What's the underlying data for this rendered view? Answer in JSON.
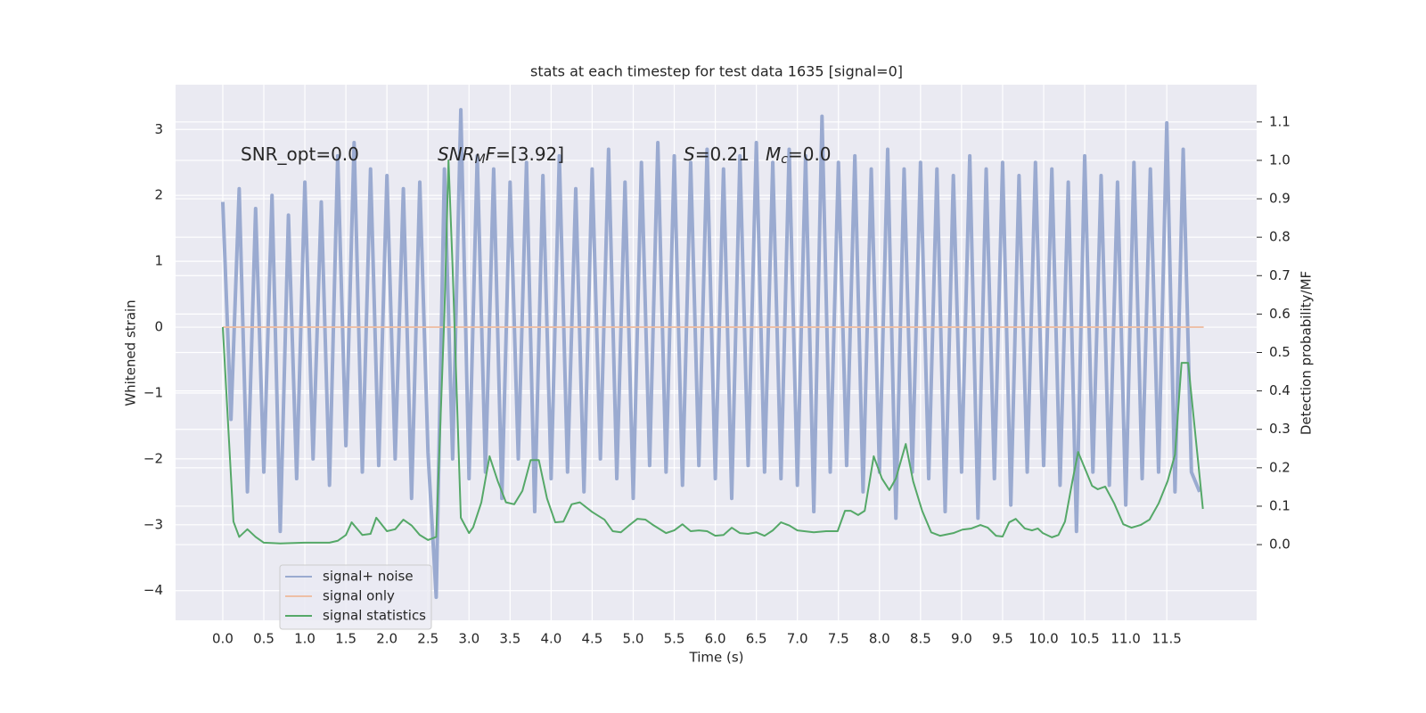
{
  "chart_data": {
    "type": "line",
    "title": "stats at each timestep for test data 1635 [signal=0]",
    "xlabel": "Time (s)",
    "ylabel": "Whitened strain",
    "y2label": "Detection probability/MF",
    "annotations": [
      "SNR_opt=0.0",
      [
        "SNR",
        "M",
        "F",
        "=[3.92]"
      ],
      [
        "S",
        "=0.21"
      ],
      [
        "M",
        "c",
        "=0.0"
      ]
    ],
    "grid": true,
    "xlim": [
      -0.575,
      12.595
    ],
    "ylim": [
      -4.45,
      3.68
    ],
    "y2lim": [
      -0.197,
      1.197
    ],
    "xticks": [
      {
        "value": 0,
        "label": "0.0"
      },
      0.5,
      {
        "value": 1,
        "label": "1.0"
      },
      1.5,
      {
        "value": 2,
        "label": "2.0"
      },
      2.5,
      {
        "value": 3,
        "label": "3.0"
      },
      3.5,
      {
        "value": 4,
        "label": "4.0"
      },
      4.5,
      {
        "value": 5,
        "label": "5.0"
      },
      5.5,
      {
        "value": 6,
        "label": "6.0"
      },
      6.5,
      {
        "value": 7,
        "label": "7.0"
      },
      7.5,
      {
        "value": 8,
        "label": "8.0"
      },
      8.5,
      {
        "value": 9,
        "label": "9.0"
      },
      9.5,
      {
        "value": 10,
        "label": "10.0"
      },
      10.5,
      {
        "value": 11,
        "label": "11.0"
      },
      11.5
    ],
    "yticks": [
      {
        "value": -4,
        "label": "−4"
      },
      {
        "value": -3,
        "label": "−3"
      },
      {
        "value": -2,
        "label": "−2"
      },
      {
        "value": -1,
        "label": "−1"
      },
      0,
      1,
      2,
      3
    ],
    "y2ticks": [
      {
        "value": 0,
        "label": "0.0"
      },
      0.1,
      0.2,
      0.3,
      0.4,
      0.5,
      0.6,
      0.7,
      0.8,
      0.9,
      {
        "value": 1,
        "label": "1.0"
      },
      1.1
    ],
    "series": [
      {
        "name": "signal+ noise",
        "color": "#9aaad0",
        "x": [
          0.0,
          0.1,
          0.2,
          0.3,
          0.4,
          0.5,
          0.6,
          0.7,
          0.8,
          0.9,
          1.0,
          1.1,
          1.2,
          1.3,
          1.4,
          1.5,
          1.6,
          1.7,
          1.8,
          1.9,
          2.0,
          2.1,
          2.2,
          2.3,
          2.4,
          2.5,
          2.6,
          2.7,
          2.8,
          2.9,
          3.0,
          3.1,
          3.2,
          3.3,
          3.4,
          3.5,
          3.6,
          3.7,
          3.8,
          3.9,
          4.0,
          4.1,
          4.2,
          4.3,
          4.4,
          4.5,
          4.6,
          4.7,
          4.8,
          4.9,
          5.0,
          5.1,
          5.2,
          5.3,
          5.4,
          5.5,
          5.6,
          5.7,
          5.8,
          5.9,
          6.0,
          6.1,
          6.2,
          6.3,
          6.4,
          6.5,
          6.6,
          6.7,
          6.8,
          6.9,
          7.0,
          7.1,
          7.2,
          7.3,
          7.4,
          7.5,
          7.6,
          7.7,
          7.8,
          7.9,
          8.0,
          8.1,
          8.2,
          8.3,
          8.4,
          8.5,
          8.6,
          8.7,
          8.8,
          8.9,
          9.0,
          9.1,
          9.2,
          9.3,
          9.4,
          9.5,
          9.6,
          9.7,
          9.8,
          9.9,
          10.0,
          10.1,
          10.2,
          10.3,
          10.4,
          10.5,
          10.6,
          10.7,
          10.8,
          10.9,
          11.0,
          11.1,
          11.2,
          11.3,
          11.4,
          11.5,
          11.6,
          11.7,
          11.8,
          11.9
        ],
        "values": [
          1.9,
          -1.4,
          2.1,
          -2.5,
          1.8,
          -2.2,
          2.0,
          -3.1,
          1.7,
          -2.3,
          2.2,
          -2.0,
          1.9,
          -2.4,
          2.6,
          -1.8,
          2.8,
          -2.2,
          2.4,
          -2.1,
          2.3,
          -2.0,
          2.1,
          -2.6,
          2.2,
          -1.9,
          -4.1,
          2.4,
          -2.0,
          3.3,
          -2.3,
          2.6,
          -2.2,
          2.4,
          -2.6,
          2.2,
          -2.0,
          2.5,
          -2.8,
          2.3,
          -2.3,
          2.6,
          -2.2,
          2.1,
          -2.5,
          2.4,
          -2.0,
          2.7,
          -2.3,
          2.2,
          -2.6,
          2.5,
          -2.1,
          2.8,
          -2.2,
          2.6,
          -2.4,
          2.5,
          -2.1,
          2.7,
          -2.3,
          2.4,
          -2.6,
          2.6,
          -2.1,
          2.8,
          -2.2,
          2.5,
          -2.3,
          2.7,
          -2.4,
          2.6,
          -2.8,
          3.2,
          -2.2,
          2.5,
          -2.1,
          2.6,
          -2.5,
          2.4,
          -2.2,
          2.7,
          -2.9,
          2.4,
          -2.2,
          2.5,
          -2.3,
          2.4,
          -2.8,
          2.3,
          -2.2,
          2.6,
          -2.9,
          2.4,
          -2.3,
          2.5,
          -2.7,
          2.3,
          -2.2,
          2.5,
          -2.1,
          2.4,
          -2.4,
          2.2,
          -3.1,
          2.6,
          -2.2,
          2.3,
          -2.4,
          2.2,
          -2.7,
          2.5,
          -2.3,
          2.4,
          -2.2,
          3.1,
          -2.5,
          2.7,
          -2.2,
          -2.5
        ]
      },
      {
        "name": "signal only",
        "color": "#eebfa5",
        "x": [
          0.0,
          11.95
        ],
        "values": [
          0,
          0
        ]
      },
      {
        "name": "signal statistics",
        "color": "#55a868",
        "axis": "y2",
        "x": [
          0,
          0.13,
          0.2,
          0.3,
          0.4,
          0.5,
          0.7,
          1.0,
          1.3,
          1.4,
          1.5,
          1.57,
          1.7,
          1.8,
          1.87,
          2.0,
          2.1,
          2.2,
          2.3,
          2.4,
          2.5,
          2.6,
          2.7,
          2.75,
          2.8,
          2.9,
          3.0,
          3.05,
          3.15,
          3.25,
          3.35,
          3.45,
          3.55,
          3.65,
          3.75,
          3.85,
          3.95,
          4.05,
          4.15,
          4.25,
          4.35,
          4.5,
          4.65,
          4.75,
          4.85,
          4.95,
          5.05,
          5.15,
          5.25,
          5.4,
          5.5,
          5.6,
          5.7,
          5.8,
          5.9,
          6.0,
          6.1,
          6.2,
          6.3,
          6.4,
          6.5,
          6.6,
          6.7,
          6.8,
          6.9,
          7.0,
          7.2,
          7.35,
          7.49,
          7.58,
          7.65,
          7.74,
          7.82,
          7.93,
          8.03,
          8.12,
          8.2,
          8.32,
          8.41,
          8.52,
          8.63,
          8.74,
          8.9,
          9.01,
          9.12,
          9.23,
          9.32,
          9.42,
          9.5,
          9.58,
          9.66,
          9.77,
          9.86,
          9.93,
          9.99,
          10.1,
          10.18,
          10.26,
          10.35,
          10.42,
          10.59,
          10.66,
          10.75,
          10.86,
          10.97,
          11.07,
          11.18,
          11.29,
          11.4,
          11.51,
          11.6,
          11.68,
          11.76,
          11.94
        ],
        "values": [
          0.566,
          0.06,
          0.02,
          0.04,
          0.02,
          0.005,
          0.003,
          0.005,
          0.005,
          0.01,
          0.025,
          0.058,
          0.025,
          0.028,
          0.07,
          0.035,
          0.04,
          0.065,
          0.05,
          0.025,
          0.012,
          0.02,
          0.6,
          1.0,
          0.72,
          0.07,
          0.03,
          0.045,
          0.11,
          0.23,
          0.165,
          0.11,
          0.105,
          0.14,
          0.22,
          0.22,
          0.12,
          0.058,
          0.06,
          0.105,
          0.11,
          0.085,
          0.065,
          0.035,
          0.032,
          0.05,
          0.067,
          0.065,
          0.05,
          0.03,
          0.037,
          0.053,
          0.035,
          0.037,
          0.035,
          0.023,
          0.025,
          0.044,
          0.03,
          0.028,
          0.032,
          0.023,
          0.037,
          0.058,
          0.05,
          0.037,
          0.032,
          0.035,
          0.035,
          0.088,
          0.088,
          0.077,
          0.088,
          0.23,
          0.172,
          0.142,
          0.172,
          0.262,
          0.165,
          0.088,
          0.032,
          0.023,
          0.03,
          0.039,
          0.042,
          0.051,
          0.044,
          0.023,
          0.021,
          0.058,
          0.067,
          0.042,
          0.037,
          0.042,
          0.03,
          0.019,
          0.025,
          0.06,
          0.165,
          0.241,
          0.153,
          0.144,
          0.151,
          0.107,
          0.053,
          0.044,
          0.051,
          0.065,
          0.107,
          0.165,
          0.234,
          0.473,
          0.473,
          0.093
        ]
      }
    ]
  }
}
